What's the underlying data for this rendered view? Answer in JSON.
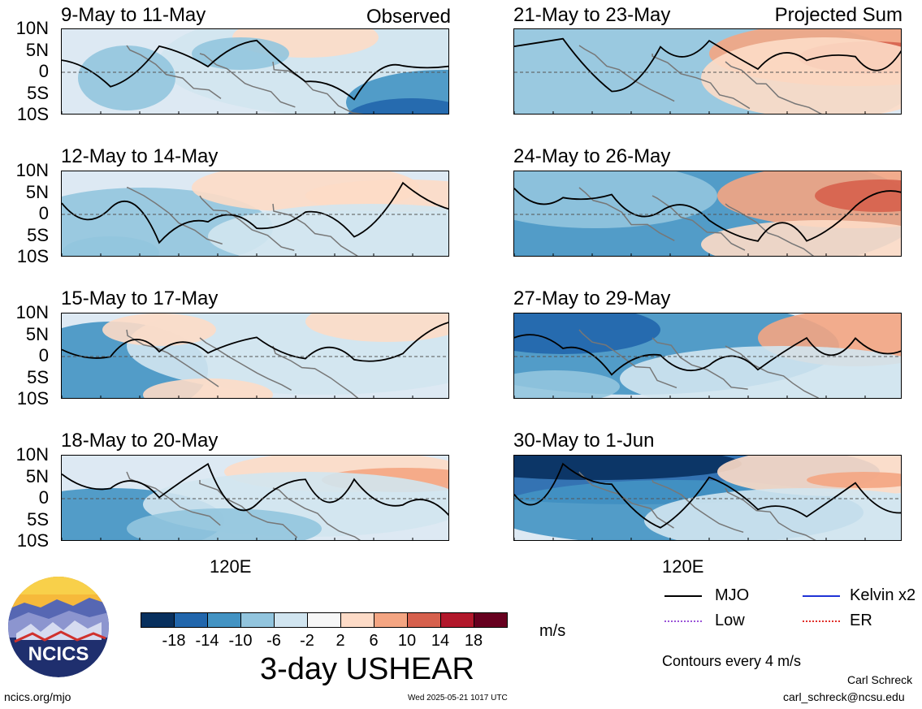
{
  "chart_data": {
    "type": "heatmap",
    "title": "3-day USHEAR",
    "units": "m/s",
    "variable": "USHEAR",
    "colorbar": {
      "ticks": [
        "-18",
        "-14",
        "-10",
        "-6",
        "-2",
        "2",
        "6",
        "10",
        "14",
        "18"
      ],
      "colors": [
        "#08305e",
        "#2166ac",
        "#4393c3",
        "#92c5de",
        "#d1e5f0",
        "#f7f7f7",
        "#fddbc7",
        "#f4a582",
        "#d6604d",
        "#b2182b",
        "#67001f"
      ]
    },
    "lat_ticks": [
      "10N",
      "5N",
      "0",
      "5S",
      "10S"
    ],
    "lon_ticks": [
      "120E"
    ],
    "column_tags": {
      "left": "Observed",
      "right": "Projected Sum"
    },
    "panels_left": [
      {
        "title": "9-May to 11-May"
      },
      {
        "title": "12-May to 14-May"
      },
      {
        "title": "15-May to 17-May"
      },
      {
        "title": "18-May to 20-May"
      }
    ],
    "panels_right": [
      {
        "title": "21-May to 23-May"
      },
      {
        "title": "24-May to 26-May"
      },
      {
        "title": "27-May to 29-May"
      },
      {
        "title": "30-May to 1-Jun"
      }
    ],
    "legend": [
      {
        "label": "MJO",
        "color": "#000000"
      },
      {
        "label": "Kelvin x2",
        "color": "#1f33d6"
      },
      {
        "label": "Low",
        "color": "#9b55d8"
      },
      {
        "label": "ER",
        "color": "#e0302a"
      }
    ],
    "contour_note": "Contours every 4 m/s"
  },
  "footer": {
    "site": "ncics.org/mjo",
    "timestamp": "Wed 2025-05-21 1017 UTC",
    "author": "Carl Schreck",
    "email": "carl_schreck@ncsu.edu",
    "logo_text": "NCICS"
  }
}
